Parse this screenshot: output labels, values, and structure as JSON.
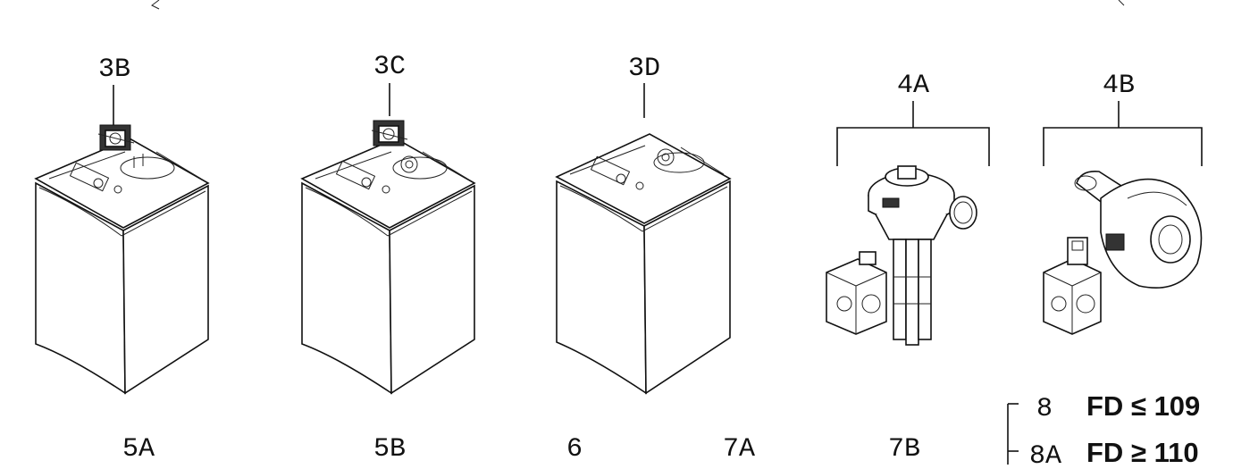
{
  "callouts": {
    "c3b": "3B",
    "c3c": "3C",
    "c3d": "3D",
    "c4a": "4A",
    "c4b": "4B"
  },
  "bottom_labels": {
    "l5a": "5A",
    "l5b": "5B",
    "l6": "6",
    "l7a": "7A",
    "l7b": "7B"
  },
  "legend": {
    "row1_code": "8",
    "row1_text": "FD ≤ 109",
    "row2_code": "8A",
    "row2_text": "FD ≥ 110"
  }
}
